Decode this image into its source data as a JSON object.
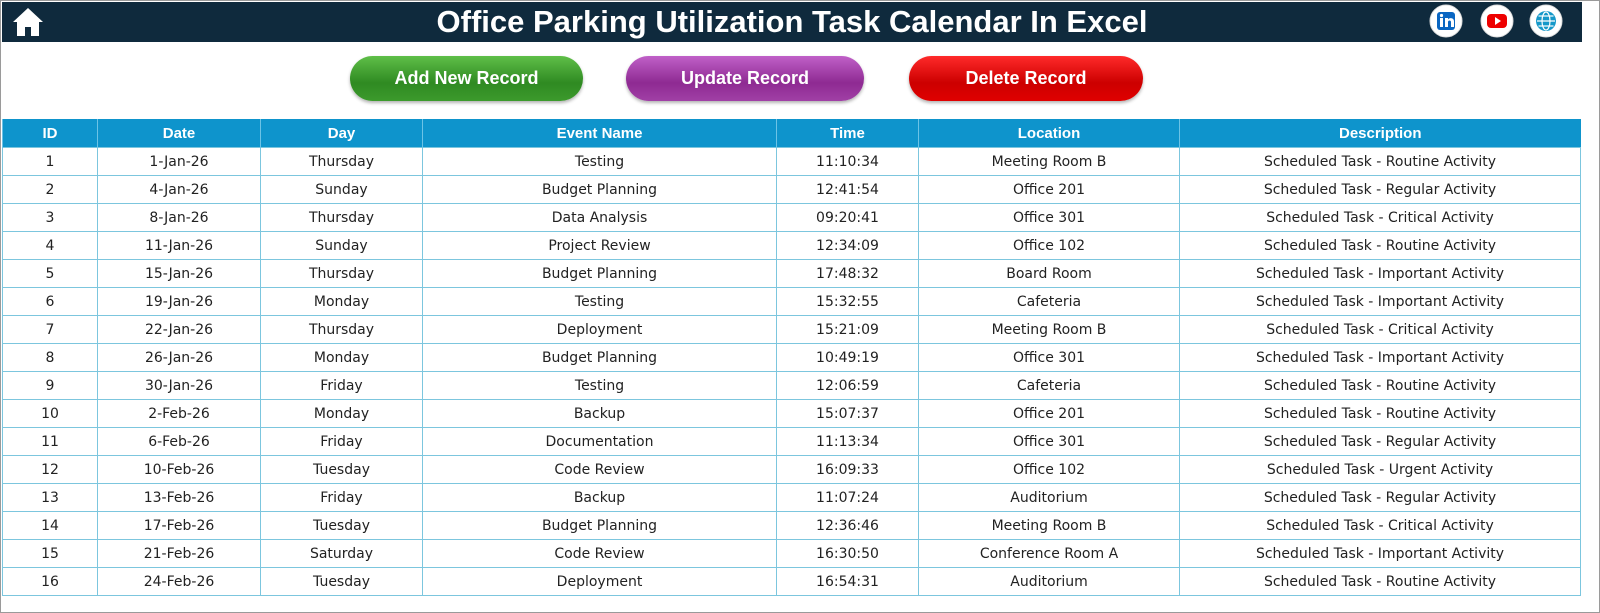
{
  "header": {
    "title": "Office Parking Utilization Task Calendar In Excel"
  },
  "buttons": [
    "Add New Record",
    "Update Record",
    "Delete Record"
  ],
  "table": {
    "columns": [
      "ID",
      "Date",
      "Day",
      "Event Name",
      "Time",
      "Location",
      "Description"
    ],
    "rows": [
      [
        1,
        "1-Jan-26",
        "Thursday",
        "Testing",
        "11:10:34",
        "Meeting Room B",
        "Scheduled Task - Routine Activity"
      ],
      [
        2,
        "4-Jan-26",
        "Sunday",
        "Budget Planning",
        "12:41:54",
        "Office 201",
        "Scheduled Task - Regular Activity"
      ],
      [
        3,
        "8-Jan-26",
        "Thursday",
        "Data Analysis",
        "09:20:41",
        "Office 301",
        "Scheduled Task - Critical Activity"
      ],
      [
        4,
        "11-Jan-26",
        "Sunday",
        "Project Review",
        "12:34:09",
        "Office 102",
        "Scheduled Task - Routine Activity"
      ],
      [
        5,
        "15-Jan-26",
        "Thursday",
        "Budget Planning",
        "17:48:32",
        "Board Room",
        "Scheduled Task - Important Activity"
      ],
      [
        6,
        "19-Jan-26",
        "Monday",
        "Testing",
        "15:32:55",
        "Cafeteria",
        "Scheduled Task - Important Activity"
      ],
      [
        7,
        "22-Jan-26",
        "Thursday",
        "Deployment",
        "15:21:09",
        "Meeting Room B",
        "Scheduled Task - Critical Activity"
      ],
      [
        8,
        "26-Jan-26",
        "Monday",
        "Budget Planning",
        "10:49:19",
        "Office 301",
        "Scheduled Task - Important Activity"
      ],
      [
        9,
        "30-Jan-26",
        "Friday",
        "Testing",
        "12:06:59",
        "Cafeteria",
        "Scheduled Task - Routine Activity"
      ],
      [
        10,
        "2-Feb-26",
        "Monday",
        "Backup",
        "15:07:37",
        "Office 201",
        "Scheduled Task - Routine Activity"
      ],
      [
        11,
        "6-Feb-26",
        "Friday",
        "Documentation",
        "11:13:34",
        "Office 301",
        "Scheduled Task - Regular Activity"
      ],
      [
        12,
        "10-Feb-26",
        "Tuesday",
        "Code Review",
        "16:09:33",
        "Office 102",
        "Scheduled Task - Urgent Activity"
      ],
      [
        13,
        "13-Feb-26",
        "Friday",
        "Backup",
        "11:07:24",
        "Auditorium",
        "Scheduled Task - Regular Activity"
      ],
      [
        14,
        "17-Feb-26",
        "Tuesday",
        "Budget Planning",
        "12:36:46",
        "Meeting Room B",
        "Scheduled Task - Critical Activity"
      ],
      [
        15,
        "21-Feb-26",
        "Saturday",
        "Code Review",
        "16:30:50",
        "Conference Room A",
        "Scheduled Task - Important Activity"
      ],
      [
        16,
        "24-Feb-26",
        "Tuesday",
        "Deployment",
        "16:54:31",
        "Auditorium",
        "Scheduled Task - Routine Activity"
      ]
    ]
  }
}
